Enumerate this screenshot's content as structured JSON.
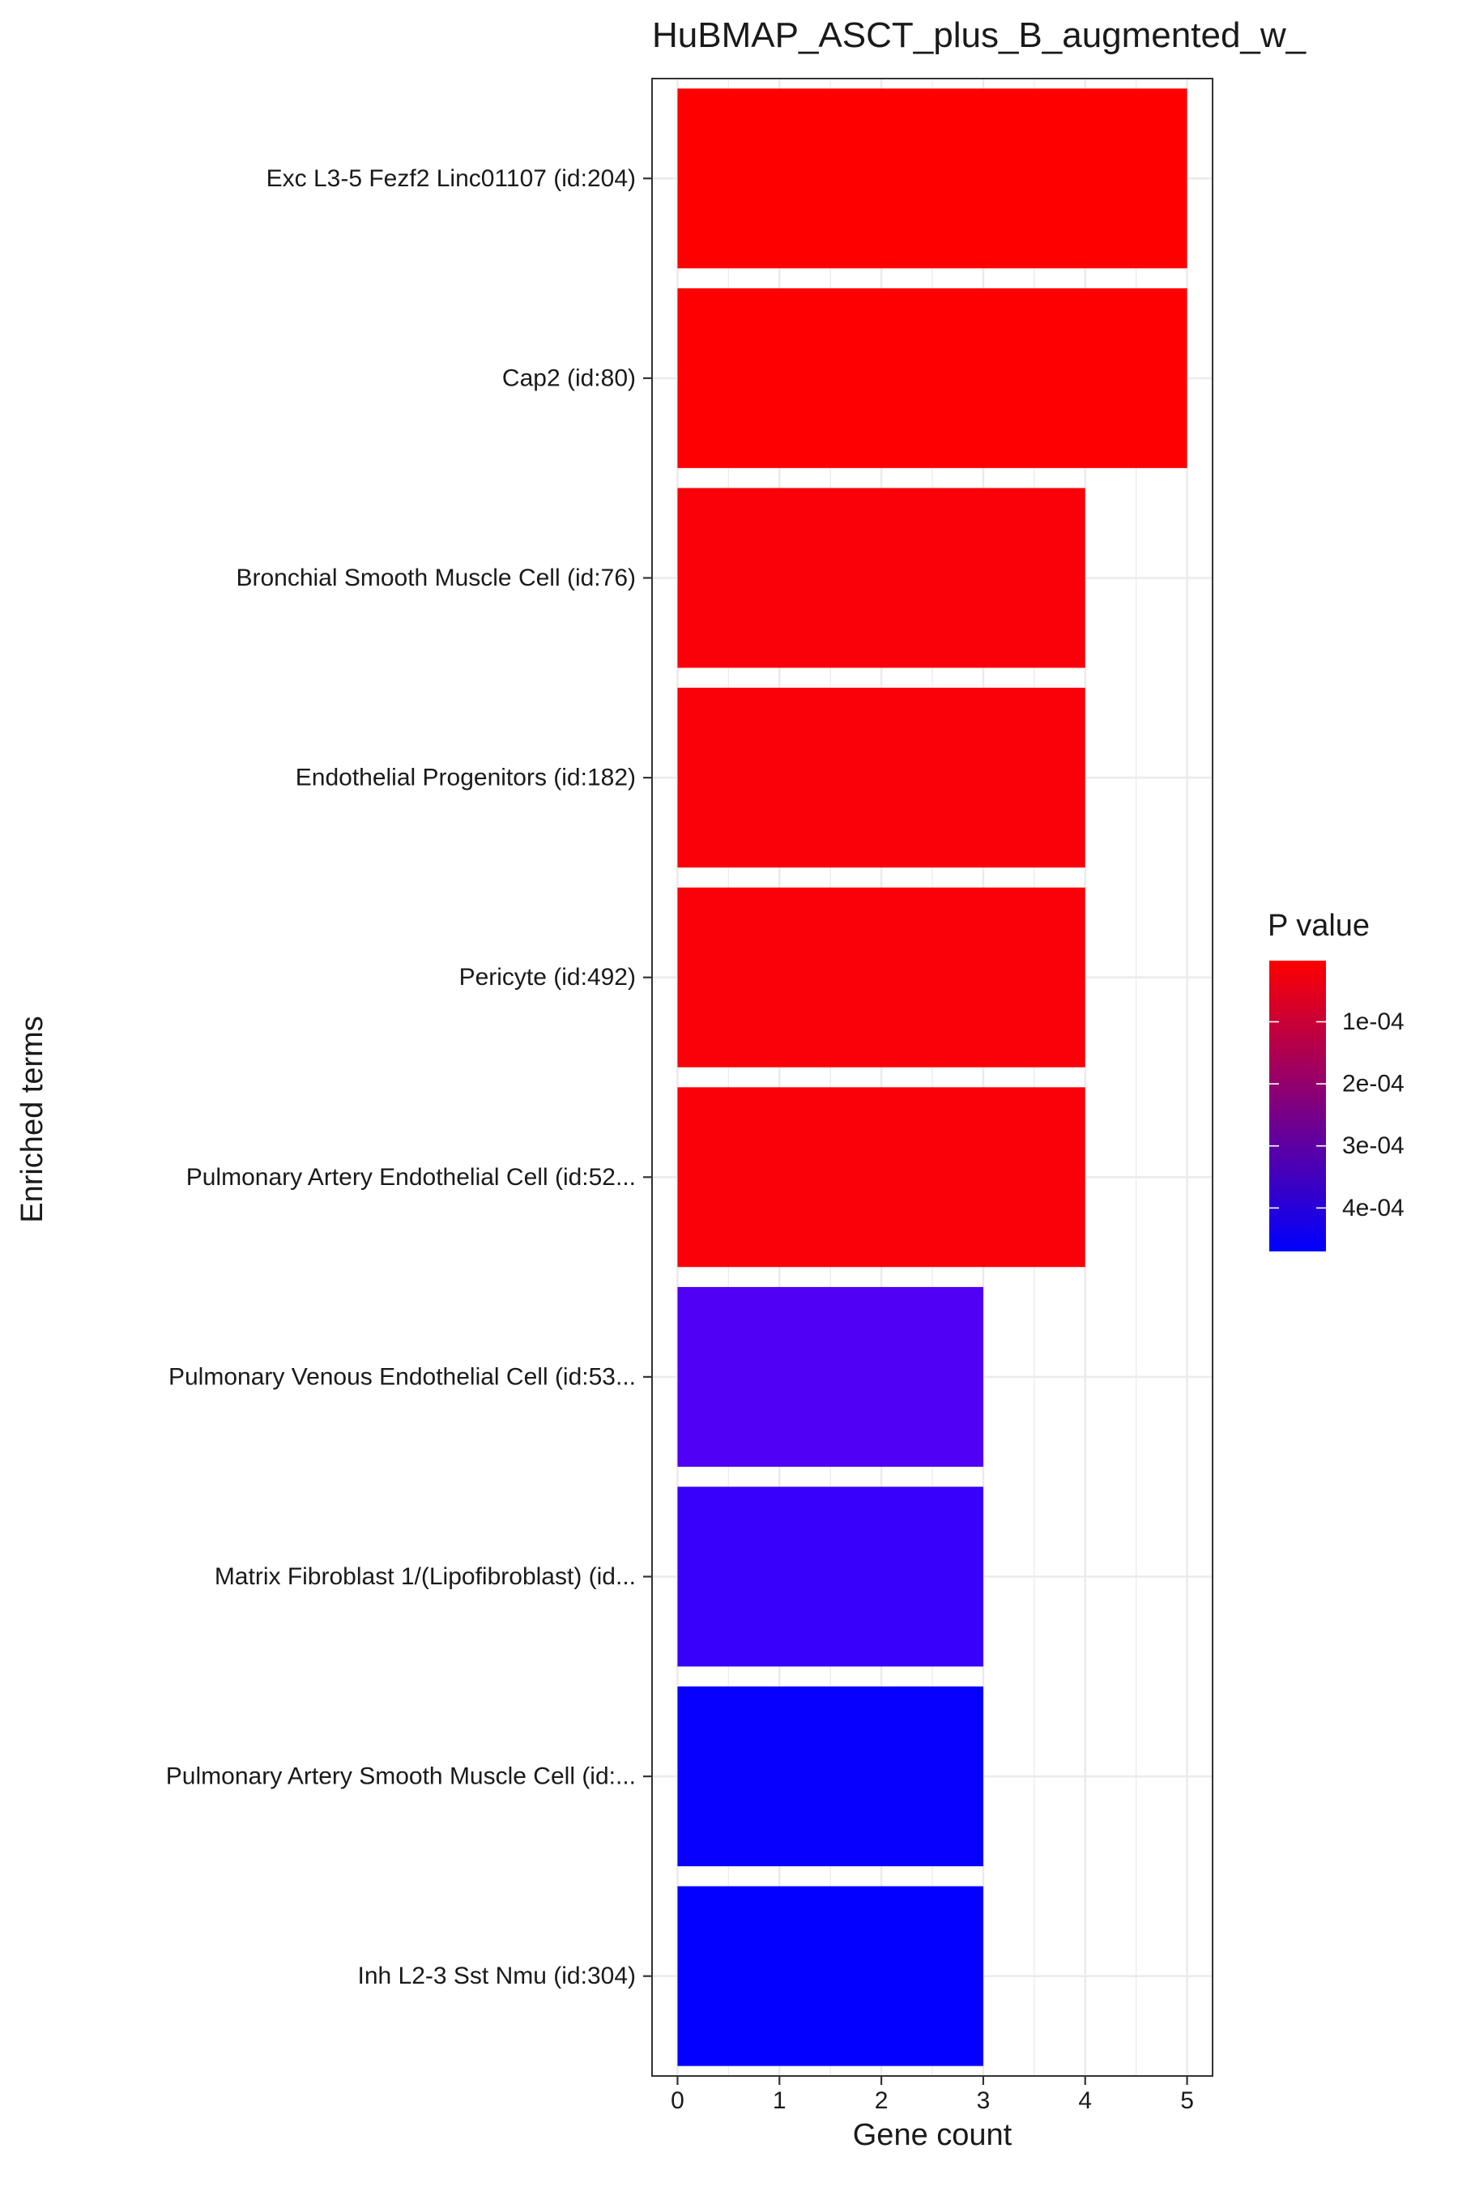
{
  "chart_data": {
    "type": "bar",
    "orientation": "horizontal",
    "title": "HuBMAP_ASCT_plus_B_augmented_w_",
    "xlabel": "Gene count",
    "ylabel": "Enriched terms",
    "xlim": [
      -0.25,
      5.25
    ],
    "xticks": [
      0,
      1,
      2,
      3,
      4,
      5
    ],
    "grid": true,
    "legend_title": "P value",
    "legend_position": "right",
    "color_scale": {
      "low": "#ff0000",
      "high": "#0000ff",
      "domain": [
        1.5e-06,
        0.00047
      ]
    },
    "legend_ticks": [
      {
        "label": "1e-04",
        "value": 0.0001
      },
      {
        "label": "2e-04",
        "value": 0.0002
      },
      {
        "label": "3e-04",
        "value": 0.0003
      },
      {
        "label": "4e-04",
        "value": 0.0004
      }
    ],
    "categories": [
      "Exc L3-5 Fezf2 Linc01107 (id:204)",
      "Cap2 (id:80)",
      "Bronchial Smooth Muscle Cell (id:76)",
      "Endothelial Progenitors (id:182)",
      "Pericyte (id:492)",
      "Pulmonary Artery Endothelial Cell (id:52...",
      "Pulmonary Venous Endothelial Cell (id:53...",
      "Matrix Fibroblast 1/(Lipofibroblast) (id...",
      "Pulmonary Artery Smooth Muscle Cell (id:...",
      "Inh L2-3 Sst Nmu (id:304)"
    ],
    "values": [
      5,
      5,
      4,
      4,
      4,
      4,
      3,
      3,
      3,
      3
    ],
    "colors": [
      "#ff0000",
      "#fe0001",
      "#fa0008",
      "#fa0008",
      "#fa0008",
      "#fa0008",
      "#5000f4",
      "#3800fa",
      "#0800ff",
      "#0400ff"
    ]
  }
}
